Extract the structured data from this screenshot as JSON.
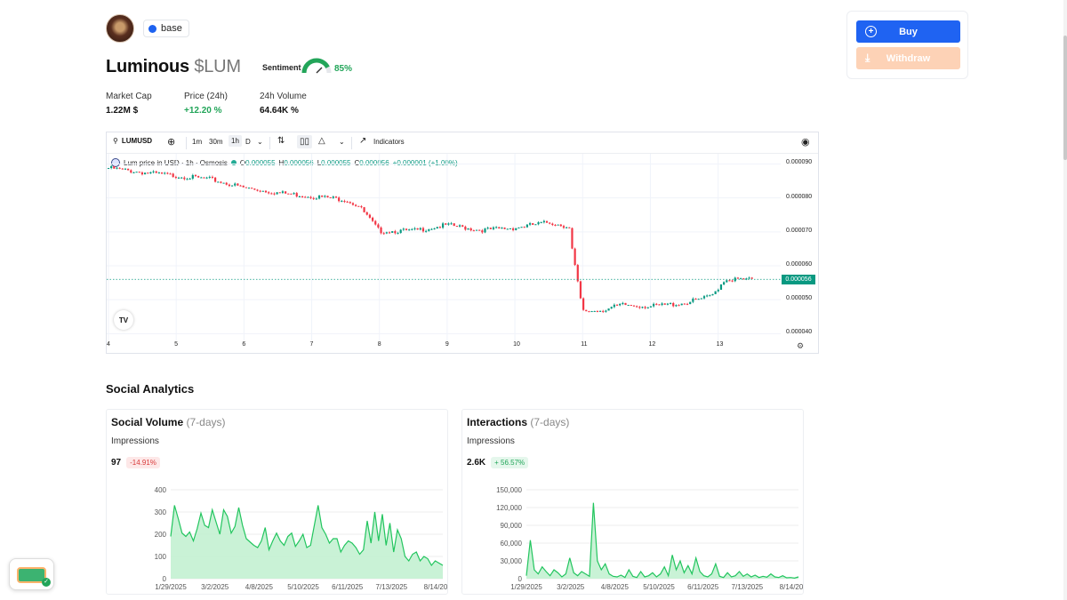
{
  "token": {
    "chain": "base",
    "name": "Luminous",
    "ticker": "$LUM",
    "sentiment_label": "Sentiment",
    "sentiment_value": "85%",
    "sentiment_fraction": 0.85
  },
  "stats": [
    {
      "label": "Market Cap",
      "value": "1.22M $"
    },
    {
      "label": "Price (24h)",
      "value": "+12.20 %"
    },
    {
      "label": "24h Volume",
      "value": "64.64K %"
    }
  ],
  "actions": {
    "buy": "Buy",
    "withdraw": "Withdraw"
  },
  "price_chart": {
    "symbol": "LUMUSD",
    "intervals": [
      "1m",
      "30m",
      "1h",
      "D"
    ],
    "active_interval": "1h",
    "indicators_label": "Indicators",
    "legend": {
      "title": "Lum price in USD · 1h · Osmosis",
      "o_label": "O",
      "o": "0.000055",
      "h_label": "H",
      "h": "0.000056",
      "l_label": "L",
      "l": "0.000055",
      "c_label": "C",
      "c": "0.000056",
      "change": "+0.000001 (+1.00%)"
    },
    "last_price": "0.000056",
    "y_ticks": [
      "0.000090",
      "0.000080",
      "0.000070",
      "0.000060",
      "0.000050",
      "0.000040"
    ],
    "x_ticks": [
      "4",
      "5",
      "6",
      "7",
      "8",
      "9",
      "10",
      "11",
      "12",
      "13"
    ],
    "logo": "TV"
  },
  "chart_data": [
    {
      "type": "line",
      "title": "Lum price in USD · 1h · Osmosis",
      "x": [
        4,
        4.5,
        5,
        5.5,
        6,
        6.5,
        7,
        7.5,
        7.7,
        8,
        8.5,
        9,
        9.5,
        10,
        10.5,
        10.8,
        10.85,
        11,
        11.3,
        11.6,
        12,
        12.5,
        12.9,
        13.1,
        13.5
      ],
      "series": [
        {
          "values": [
            8.88e-05,
            8.75e-05,
            8.65e-05,
            8.55e-05,
            8.3e-05,
            8.15e-05,
            8.05e-05,
            7.95e-05,
            7.75e-05,
            7.02e-05,
            7.03e-05,
            7.2e-05,
            7.05e-05,
            7.12e-05,
            7.28e-05,
            7.15e-05,
            6.4e-05,
            4.65e-05,
            4.7e-05,
            4.85e-05,
            4.8e-05,
            4.9e-05,
            5.1e-05,
            5.6e-05,
            5.59e-05
          ]
        }
      ],
      "ylim": [
        3.8e-05,
        9.3e-05
      ],
      "ylabel": "",
      "xlabel": ""
    },
    {
      "type": "area",
      "title": "Social Volume",
      "x_ticks": [
        "1/29/2025",
        "3/2/2025",
        "4/8/2025",
        "5/10/2025",
        "6/11/2025",
        "7/13/2025",
        "8/14/20"
      ],
      "y_ticks": [
        "400",
        "300",
        "200",
        "100",
        "0"
      ],
      "ylim": [
        0,
        400
      ],
      "values": [
        190,
        330,
        270,
        205,
        190,
        210,
        170,
        225,
        295,
        240,
        230,
        310,
        255,
        200,
        310,
        280,
        205,
        235,
        320,
        240,
        180,
        165,
        150,
        140,
        170,
        230,
        130,
        170,
        205,
        170,
        150,
        190,
        205,
        145,
        170,
        200,
        140,
        150,
        240,
        330,
        230,
        200,
        160,
        180,
        180,
        120,
        150,
        170,
        160,
        140,
        110,
        130,
        260,
        160,
        300,
        170,
        290,
        150,
        250,
        120,
        220,
        180,
        100,
        80,
        110,
        120,
        80,
        100,
        90,
        60,
        80,
        70,
        60
      ]
    },
    {
      "type": "area",
      "title": "Interactions",
      "x_ticks": [
        "1/29/2025",
        "3/2/2025",
        "4/8/2025",
        "5/10/2025",
        "6/11/2025",
        "7/13/2025",
        "8/14/20"
      ],
      "y_ticks": [
        "150,000",
        "120,000",
        "90,000",
        "60,000",
        "30,000",
        "0"
      ],
      "ylim": [
        0,
        150000
      ],
      "values": [
        5000,
        65000,
        15000,
        8000,
        20000,
        12000,
        5000,
        15000,
        10000,
        3000,
        8000,
        35000,
        10000,
        5000,
        12000,
        8000,
        4000,
        128000,
        30000,
        15000,
        25000,
        8000,
        4000,
        3000,
        6000,
        2000,
        15000,
        4000,
        2000,
        12000,
        3000,
        5000,
        10000,
        3000,
        8000,
        20000,
        5000,
        40000,
        15000,
        30000,
        10000,
        22000,
        8000,
        35000,
        12000,
        5000,
        3000,
        8000,
        25000,
        4000,
        2000,
        10000,
        3000,
        5000,
        12000,
        4000,
        8000,
        3000,
        6000,
        2000,
        4000,
        2500,
        8000,
        3000,
        2000,
        5000,
        1500,
        2000,
        1000,
        3000
      ]
    }
  ],
  "social": {
    "section_title": "Social Analytics",
    "cards": [
      {
        "title": "Social Volume",
        "period": "(7-days)",
        "metric": "Impressions",
        "value": "97",
        "change": "-14.91%"
      },
      {
        "title": "Interactions",
        "period": "(7-days)",
        "metric": "Impressions",
        "value": "2.6K",
        "change": "+ 56.57%"
      }
    ]
  },
  "colors": {
    "accent_buy": "#1f63f2",
    "withdraw": "#fdd2b6",
    "up": "#089981",
    "down": "#f23645",
    "social_green": "#22c55e",
    "positive": "#22a559",
    "negative": "#d93b3b"
  }
}
